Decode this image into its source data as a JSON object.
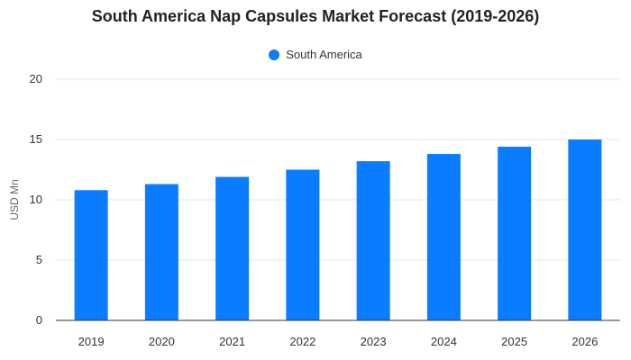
{
  "chart_data": {
    "type": "bar",
    "title": "South America Nap Capsules Market Forecast (2019-2026)",
    "xlabel": "",
    "ylabel": "USD Mn",
    "categories": [
      "2019",
      "2020",
      "2021",
      "2022",
      "2023",
      "2024",
      "2025",
      "2026"
    ],
    "series": [
      {
        "name": "South America",
        "values": [
          10.8,
          11.3,
          11.9,
          12.5,
          13.2,
          13.8,
          14.4,
          15.0
        ],
        "color": "#0a7cff"
      }
    ],
    "ylim": [
      0,
      20
    ],
    "yticks": [
      0,
      5,
      10,
      15,
      20
    ],
    "grid": true,
    "legend_position": "top-center"
  }
}
